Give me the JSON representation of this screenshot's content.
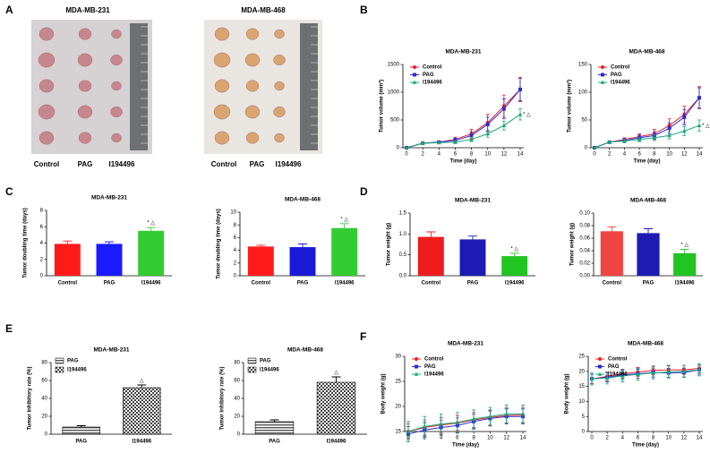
{
  "panels": [
    "A",
    "B",
    "C",
    "D",
    "E",
    "F"
  ],
  "panel_a": {
    "titles": [
      "MDA-MB-231",
      "MDA-MB-468"
    ],
    "groups": [
      "Control",
      "PAG",
      "I194496"
    ]
  },
  "chart_data": [
    {
      "type": "line",
      "title": "MDA-MB-231",
      "x_label": "Time (day)",
      "y_label": "Tumor volume (mm³)",
      "x": [
        0,
        2,
        4,
        6,
        8,
        10,
        12,
        14
      ],
      "xlim": [
        0,
        14
      ],
      "xticks": [
        0,
        2,
        4,
        6,
        8,
        10,
        12,
        14
      ],
      "ylim": [
        0,
        1500
      ],
      "yticks": [
        0,
        500,
        1000,
        1500
      ],
      "series": [
        {
          "name": "Control",
          "color": "#e8202a",
          "marker": "circle",
          "values": [
            0,
            80,
            100,
            150,
            250,
            450,
            750,
            1050
          ],
          "errors": [
            0,
            10,
            20,
            40,
            80,
            150,
            200,
            220
          ]
        },
        {
          "name": "PAG",
          "color": "#2b2bd6",
          "marker": "square",
          "values": [
            0,
            80,
            100,
            130,
            220,
            420,
            700,
            1050
          ],
          "errors": [
            0,
            10,
            20,
            40,
            70,
            130,
            180,
            200
          ]
        },
        {
          "name": "I194496",
          "color": "#1aa877",
          "marker": "triangle",
          "values": [
            0,
            80,
            90,
            100,
            150,
            250,
            400,
            600
          ],
          "errors": [
            0,
            10,
            15,
            25,
            40,
            60,
            80,
            100
          ],
          "annotation": "* △"
        }
      ]
    },
    {
      "type": "line",
      "title": "MDA-MB-468",
      "x_label": "Time (day)",
      "y_label": "Tumor volume (mm³)",
      "x": [
        0,
        2,
        4,
        6,
        8,
        10,
        12,
        14
      ],
      "xlim": [
        0,
        14
      ],
      "xticks": [
        0,
        2,
        4,
        6,
        8,
        10,
        12,
        14
      ],
      "ylim": [
        0,
        150
      ],
      "yticks": [
        0,
        50,
        100,
        150
      ],
      "series": [
        {
          "name": "Control",
          "color": "#e8202a",
          "marker": "circle",
          "values": [
            0,
            10,
            15,
            20,
            25,
            40,
            60,
            90
          ],
          "errors": [
            0,
            2,
            3,
            5,
            8,
            12,
            15,
            20
          ]
        },
        {
          "name": "PAG",
          "color": "#2b2bd6",
          "marker": "square",
          "values": [
            0,
            10,
            13,
            18,
            22,
            35,
            55,
            90
          ],
          "errors": [
            0,
            2,
            3,
            5,
            7,
            10,
            14,
            18
          ]
        },
        {
          "name": "I194496",
          "color": "#1aa877",
          "marker": "triangle",
          "values": [
            0,
            10,
            12,
            15,
            18,
            22,
            30,
            40
          ],
          "errors": [
            0,
            2,
            3,
            4,
            5,
            6,
            8,
            10
          ],
          "annotation": "* △"
        }
      ]
    },
    {
      "type": "bar",
      "title": "MDA-MB-231",
      "y_label": "Tumor doubling time (days)",
      "categories": [
        "Control",
        "PAG",
        "I194496"
      ],
      "values": [
        3.9,
        3.9,
        5.5
      ],
      "errors": [
        0.35,
        0.25,
        0.4
      ],
      "colors": [
        "#ff1a1a",
        "#1a1aff",
        "#33cc33"
      ],
      "annotations": [
        null,
        null,
        "* △"
      ],
      "ylim": [
        0,
        8
      ],
      "yticks": [
        0,
        2,
        4,
        6,
        8
      ]
    },
    {
      "type": "bar",
      "title": "MDA-MB-468",
      "y_label": "Tumor doubling time (days)",
      "categories": [
        "Control",
        "PAG",
        "I194496"
      ],
      "values": [
        4.6,
        4.5,
        7.5
      ],
      "errors": [
        0.2,
        0.5,
        0.7
      ],
      "colors": [
        "#ff1a1a",
        "#1a1ad6",
        "#33cc33"
      ],
      "annotations": [
        null,
        null,
        "* △"
      ],
      "ylim": [
        0,
        10
      ],
      "yticks": [
        0,
        2,
        4,
        6,
        8,
        10
      ]
    },
    {
      "type": "bar",
      "title": "MDA-MB-231",
      "y_label": "Tumor weight (g)",
      "categories": [
        "Control",
        "PAG",
        "I194496"
      ],
      "values": [
        0.93,
        0.87,
        0.47
      ],
      "errors": [
        0.12,
        0.08,
        0.07
      ],
      "colors": [
        "#ee1c1c",
        "#1c1cb4",
        "#22c422"
      ],
      "annotations": [
        null,
        null,
        "* △"
      ],
      "ylim": [
        0,
        1.5
      ],
      "yticks": [
        {
          "value": 0,
          "label": "0.0"
        },
        {
          "value": 0.5,
          "label": "0.5"
        },
        {
          "value": 1,
          "label": "1.0"
        },
        {
          "value": 1.5,
          "label": "1.5"
        }
      ]
    },
    {
      "type": "bar",
      "title": "MDA-MB-468",
      "y_label": "Tumor weight (g)",
      "categories": [
        "Control",
        "PAG",
        "I194496"
      ],
      "values": [
        0.071,
        0.068,
        0.036
      ],
      "errors": [
        0.007,
        0.007,
        0.006
      ],
      "colors": [
        "#f04444",
        "#1c1cb4",
        "#22c422"
      ],
      "annotations": [
        null,
        null,
        "* △"
      ],
      "ylim": [
        0,
        0.1
      ],
      "yticks": [
        {
          "value": 0,
          "label": "0.00"
        },
        {
          "value": 0.02,
          "label": "0.02"
        },
        {
          "value": 0.04,
          "label": "0.04"
        },
        {
          "value": 0.06,
          "label": "0.06"
        },
        {
          "value": 0.08,
          "label": "0.08"
        },
        {
          "value": 0.1,
          "label": "0.10"
        }
      ]
    },
    {
      "type": "bar",
      "title": "MDA-MB-231",
      "y_label": "Tumor inhibitory rate (%)",
      "categories": [
        "PAG",
        "I194496"
      ],
      "values": [
        8,
        52
      ],
      "errors": [
        1.5,
        3
      ],
      "patterns": [
        "stripes",
        "checker"
      ],
      "legend": [
        "PAG",
        "I194496"
      ],
      "annotations": [
        null,
        "△"
      ],
      "ylim": [
        0,
        80
      ],
      "yticks": [
        0,
        20,
        40,
        60,
        80
      ]
    },
    {
      "type": "bar",
      "title": "MDA-MB-468",
      "y_label": "Tumor inhibitory rate (%)",
      "categories": [
        "PAG",
        "I194496"
      ],
      "values": [
        14,
        58
      ],
      "errors": [
        2,
        6
      ],
      "patterns": [
        "stripes",
        "checker"
      ],
      "legend": [
        "PAG",
        "I194496"
      ],
      "annotations": [
        null,
        "△"
      ],
      "ylim": [
        0,
        80
      ],
      "yticks": [
        0,
        20,
        40,
        60,
        80
      ]
    },
    {
      "type": "line",
      "title": "MDA-MB-231",
      "x_label": "Time (day)",
      "y_label": "Body weight (g)",
      "x": [
        0,
        2,
        4,
        6,
        8,
        10,
        12,
        14
      ],
      "xlim": [
        0,
        14
      ],
      "xticks": [
        0,
        2,
        4,
        6,
        8,
        10,
        12,
        14
      ],
      "ylim": [
        15,
        30
      ],
      "yticks": [
        15,
        20,
        25,
        30
      ],
      "series": [
        {
          "name": "Control",
          "color": "#e8202a",
          "marker": "circle",
          "values": [
            15,
            15.8,
            16.3,
            16.7,
            17.3,
            17.8,
            18.2,
            18.3
          ],
          "errors": [
            1.5,
            1.5,
            1.5,
            1.5,
            1.5,
            1.5,
            1.5,
            1.5
          ]
        },
        {
          "name": "PAG",
          "color": "#2b2bd6",
          "marker": "square",
          "values": [
            14.5,
            15.3,
            15.8,
            16.2,
            17,
            17.6,
            18,
            18
          ],
          "errors": [
            1.5,
            1.5,
            1.5,
            1.5,
            1.5,
            1.5,
            1.5,
            1.5
          ]
        },
        {
          "name": "I194496",
          "color": "#1aa877",
          "marker": "triangle",
          "values": [
            15,
            16,
            16.5,
            16.8,
            17.5,
            18,
            18.5,
            18.5
          ],
          "errors": [
            2,
            2,
            2,
            2,
            1.8,
            1.8,
            1.8,
            1.8
          ]
        }
      ]
    },
    {
      "type": "line",
      "title": "MDA-MB-468",
      "x_label": "Time (day)",
      "y_label": "Body weight (g)",
      "x": [
        0,
        2,
        4,
        6,
        8,
        10,
        12,
        14
      ],
      "xlim": [
        0,
        14
      ],
      "xticks": [
        0,
        2,
        4,
        6,
        8,
        10,
        12,
        14
      ],
      "ylim": [
        0,
        25
      ],
      "yticks": [
        0,
        5,
        10,
        15,
        20,
        25
      ],
      "series": [
        {
          "name": "Control",
          "color": "#e8202a",
          "marker": "circle",
          "values": [
            17.5,
            18.3,
            19.2,
            19.8,
            20.3,
            20.5,
            20.5,
            21
          ],
          "errors": [
            1.5,
            1.5,
            1.5,
            1.5,
            1.5,
            1.5,
            1.5,
            1.5
          ]
        },
        {
          "name": "PAG",
          "color": "#2b2bd6",
          "marker": "square",
          "values": [
            17.5,
            18,
            18.8,
            19.2,
            19.6,
            19.5,
            19.6,
            20.5
          ],
          "errors": [
            1.5,
            1.5,
            1.5,
            1.5,
            1.5,
            1.5,
            1.5,
            1.5
          ]
        },
        {
          "name": "I194496",
          "color": "#1aa877",
          "marker": "triangle",
          "values": [
            17.5,
            17.8,
            18.5,
            19,
            19.5,
            19.8,
            20,
            20.5
          ],
          "errors": [
            2,
            2,
            2,
            2,
            2,
            2,
            2,
            2
          ]
        }
      ]
    }
  ]
}
